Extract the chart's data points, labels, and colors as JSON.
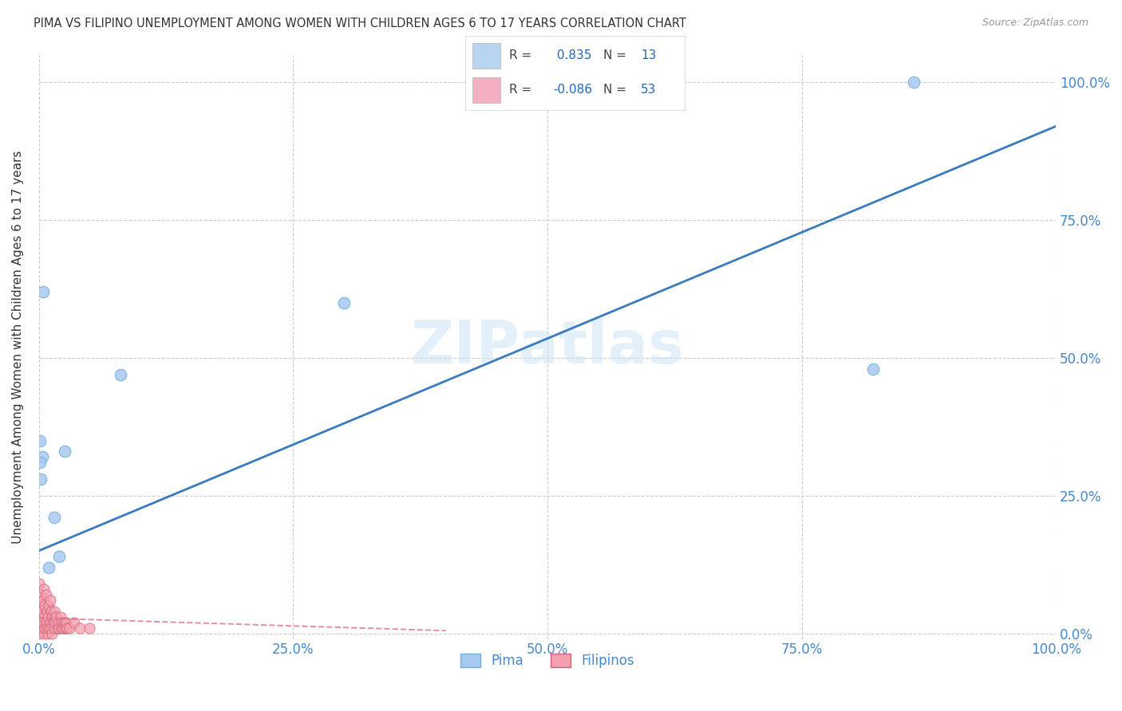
{
  "title": "PIMA VS FILIPINO UNEMPLOYMENT AMONG WOMEN WITH CHILDREN AGES 6 TO 17 YEARS CORRELATION CHART",
  "source": "Source: ZipAtlas.com",
  "ylabel": "Unemployment Among Women with Children Ages 6 to 17 years",
  "xlim": [
    0.0,
    1.0
  ],
  "ylim": [
    -0.01,
    1.05
  ],
  "xticks": [
    0.0,
    0.25,
    0.5,
    0.75,
    1.0
  ],
  "yticks": [
    0.0,
    0.25,
    0.5,
    0.75,
    1.0
  ],
  "xticklabels": [
    "0.0%",
    "25.0%",
    "50.0%",
    "75.0%",
    "100.0%"
  ],
  "yticklabels": [
    "0.0%",
    "25.0%",
    "50.0%",
    "75.0%",
    "100.0%"
  ],
  "pima_color": "#a8c8f0",
  "pima_edge_color": "#6baed6",
  "filipino_color": "#f4a0b0",
  "filipino_edge_color": "#d06070",
  "trend_pima_color": "#3a7abf",
  "trend_filipino_color": "#e07090",
  "R_pima": 0.835,
  "N_pima": 13,
  "R_filipino": -0.086,
  "N_filipino": 53,
  "watermark": "ZIPatlas",
  "background_color": "#ffffff",
  "grid_color": "#cccccc",
  "tick_color": "#4488cc",
  "title_color": "#333333",
  "pima_x": [
    0.003,
    0.025,
    0.015,
    0.001,
    0.002,
    0.01,
    0.02,
    0.004,
    0.08,
    0.86,
    0.3,
    0.001,
    0.82
  ],
  "pima_y": [
    0.32,
    0.33,
    0.21,
    0.31,
    0.28,
    0.12,
    0.14,
    0.62,
    0.47,
    1.0,
    0.6,
    0.35,
    0.48
  ],
  "filipino_x": [
    0.0,
    0.0,
    0.0,
    0.0,
    0.0,
    0.001,
    0.001,
    0.001,
    0.002,
    0.002,
    0.003,
    0.003,
    0.004,
    0.004,
    0.005,
    0.005,
    0.005,
    0.006,
    0.006,
    0.007,
    0.007,
    0.008,
    0.008,
    0.009,
    0.009,
    0.01,
    0.01,
    0.011,
    0.011,
    0.012,
    0.012,
    0.013,
    0.013,
    0.014,
    0.015,
    0.015,
    0.016,
    0.017,
    0.018,
    0.019,
    0.02,
    0.021,
    0.022,
    0.023,
    0.024,
    0.025,
    0.026,
    0.027,
    0.028,
    0.03,
    0.035,
    0.04,
    0.05
  ],
  "filipino_y": [
    0.0,
    0.02,
    0.04,
    0.06,
    0.09,
    0.01,
    0.03,
    0.07,
    0.02,
    0.05,
    0.01,
    0.04,
    0.02,
    0.06,
    0.0,
    0.03,
    0.08,
    0.01,
    0.05,
    0.02,
    0.07,
    0.01,
    0.04,
    0.0,
    0.03,
    0.01,
    0.05,
    0.02,
    0.06,
    0.01,
    0.04,
    0.0,
    0.03,
    0.02,
    0.01,
    0.04,
    0.02,
    0.03,
    0.01,
    0.02,
    0.01,
    0.03,
    0.01,
    0.02,
    0.01,
    0.02,
    0.01,
    0.02,
    0.01,
    0.01,
    0.02,
    0.01,
    0.01
  ],
  "marker_size_pima": 110,
  "marker_size_filipino": 90,
  "legend_box_color_pima": "#b8d4f0",
  "legend_box_color_filipino": "#f4b0c0",
  "legend_value_color": "#2266bb"
}
